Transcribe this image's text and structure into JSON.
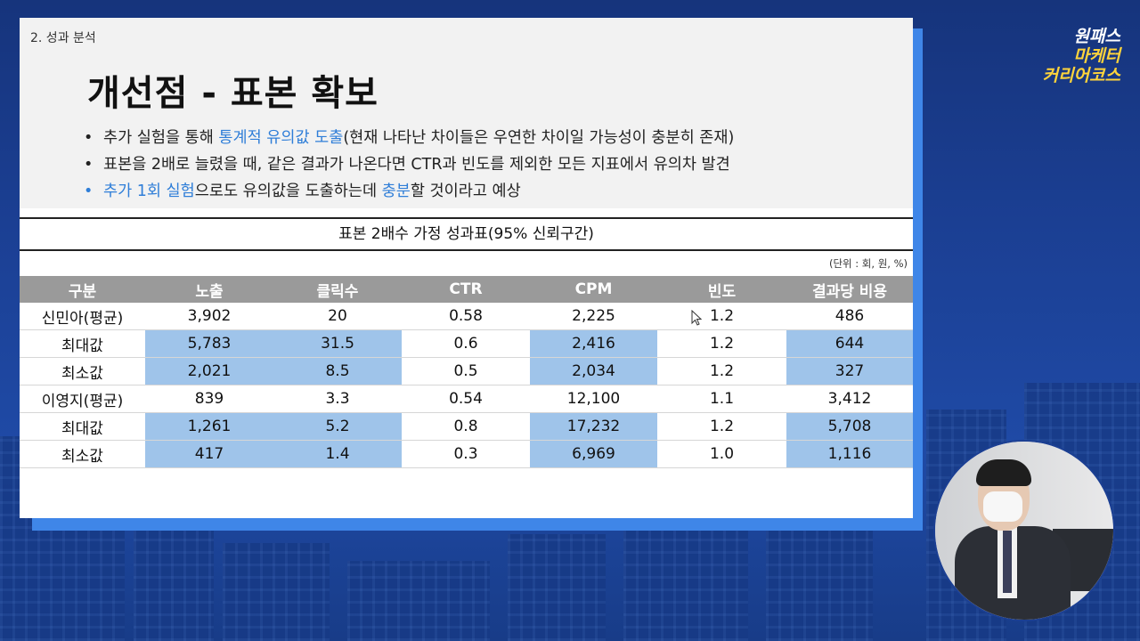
{
  "brand": {
    "line1": "원패스",
    "line2": "마케터",
    "line3": "커리어코스"
  },
  "slide": {
    "section": "2. 성과 분석",
    "title": "개선점 - 표본 확보",
    "bullets": [
      {
        "pre": "추가 실험을 통해 ",
        "hl1": "통계적 유의값 도출",
        "mid": "(현재 나타난 차이들은 우연한 차이일 가능성이 충분히 존재)",
        "hl2": "",
        "post": ""
      },
      {
        "pre": "표본을 2배로 늘렸을 때, 같은 결과가 나온다면 CTR과 빈도를 제외한 모든 지표에서 유의차 발견",
        "hl1": "",
        "mid": "",
        "hl2": "",
        "post": ""
      },
      {
        "pre": "",
        "hl1": "추가 1회 실험",
        "mid": "으로도 유의값을 도출하는데 ",
        "hl2": "충분",
        "post": "할 것이라고 예상"
      }
    ],
    "table_title": "표본 2배수 가정 성과표(95% 신뢰구간)",
    "unit": "(단위 : 회, 원, %)",
    "columns": [
      "구분",
      "노출",
      "클릭수",
      "CTR",
      "CPM",
      "빈도",
      "결과당 비용"
    ],
    "rows": [
      [
        "신민아(평균)",
        "3,902",
        "20",
        "0.58",
        "2,225",
        "1.2",
        "486"
      ],
      [
        "최대값",
        "5,783",
        "31.5",
        "0.6",
        "2,416",
        "1.2",
        "644"
      ],
      [
        "최소값",
        "2,021",
        "8.5",
        "0.5",
        "2,034",
        "1.2",
        "327"
      ],
      [
        "이영지(평균)",
        "839",
        "3.3",
        "0.54",
        "12,100",
        "1.1",
        "3,412"
      ],
      [
        "최대값",
        "1,261",
        "5.2",
        "0.8",
        "17,232",
        "1.2",
        "5,708"
      ],
      [
        "최소값",
        "417",
        "1.4",
        "0.3",
        "6,969",
        "1.0",
        "1,116"
      ]
    ]
  },
  "colors": {
    "accent_blue": "#2f7ed8",
    "highlight_cell": "#9fc4ea",
    "header_gray": "#9a9a9a",
    "brand_yellow": "#ffd43b"
  }
}
